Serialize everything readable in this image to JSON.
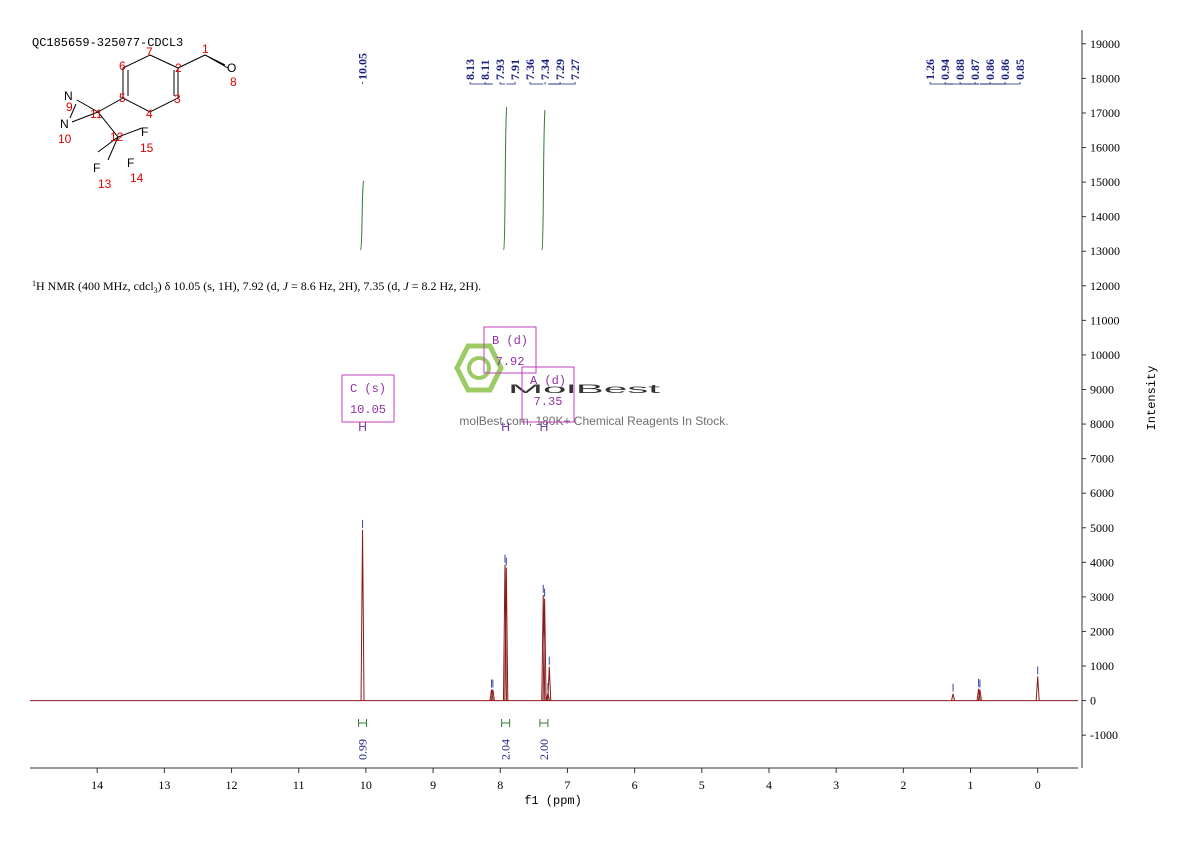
{
  "chart_data": {
    "type": "nmr",
    "title": "QC185659-325077-CDCL3",
    "description": [
      "1",
      "H NMR (400 MHz, cdcl",
      "3",
      ") δ 10.05 (s, 1H), 7.92 (d, ",
      "J",
      " = 8.6 Hz, 2H), 7.35 (d, ",
      "J",
      " = 8.2 Hz, 2H)."
    ],
    "xlabel": "f1 (ppm)",
    "ylabel": "Intensity",
    "xlim": [
      15,
      -0.6
    ],
    "ylim": [
      -1950,
      19400
    ],
    "xticks": [
      14,
      13,
      12,
      11,
      10,
      9,
      8,
      7,
      6,
      5,
      4,
      3,
      2,
      1,
      0
    ],
    "yticks": [
      -1000,
      0,
      1000,
      2000,
      3000,
      4000,
      5000,
      6000,
      7000,
      8000,
      9000,
      10000,
      11000,
      12000,
      13000,
      14000,
      15000,
      16000,
      17000,
      18000,
      19000
    ],
    "color": "#8b1a1a",
    "x": [
      10.05,
      8.13,
      8.11,
      7.93,
      7.91,
      7.36,
      7.34,
      7.29,
      7.27,
      1.26,
      0.88,
      0.86,
      0.0
    ],
    "values": [
      4940,
      320,
      320,
      3930,
      3850,
      3060,
      2950,
      220,
      980,
      200,
      340,
      320,
      700
    ],
    "peak_labels": [
      10.05,
      8.13,
      8.11,
      7.93,
      7.91,
      7.36,
      7.34,
      7.29,
      7.27,
      1.26,
      0.94,
      0.88,
      0.87,
      0.86,
      0.86,
      0.85
    ],
    "integrals": [
      {
        "x": 10.05,
        "value": 0.99
      },
      {
        "x": 7.92,
        "value": 2.04
      },
      {
        "x": 7.35,
        "value": 2.0,
        "label": "2.00"
      }
    ],
    "multiplets": [
      {
        "name": "C (s)",
        "shift": "10.05"
      },
      {
        "name": "B (d)",
        "shift": "7.92"
      },
      {
        "name": "A (d)",
        "shift": "7.35"
      }
    ],
    "multiplet_marker": "H",
    "watermark": {
      "brand": "MolBest",
      "tagline": "molBest.com, 180K+ Chemical Reagents In Stock."
    },
    "molecule": [
      "1",
      "2",
      "3",
      "4",
      "5",
      "6",
      "7",
      "O",
      "8",
      "N",
      "9",
      "N",
      "10",
      "11",
      "12",
      "F",
      "15",
      "F",
      "13",
      "F",
      "14"
    ]
  }
}
